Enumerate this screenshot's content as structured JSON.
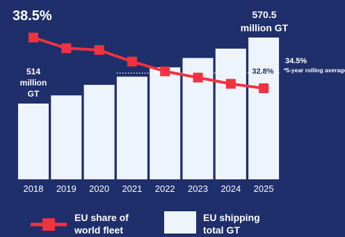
{
  "chart_data": {
    "type": "bar",
    "categories": [
      "2018",
      "2019",
      "2020",
      "2021",
      "2022",
      "2023",
      "2024",
      "2025"
    ],
    "series": [
      {
        "name": "EU shipping total GT",
        "type": "bar",
        "unit": "million GT",
        "values": [
          514,
          521,
          530,
          537,
          545,
          553,
          561,
          570.5
        ]
      },
      {
        "name": "EU share of world fleet",
        "type": "line",
        "unit": "%",
        "values": [
          38.5,
          37.3,
          37.1,
          35.8,
          34.7,
          34.0,
          33.3,
          32.8
        ]
      }
    ],
    "reference_line": {
      "value": 34.5,
      "label": "34.5%",
      "note": "*5-year rolling average"
    },
    "annotations": {
      "first_share": "38.5%",
      "first_gt_line1": "514",
      "first_gt_line2": "million",
      "first_gt_line3": "GT",
      "last_gt_line1": "570.5",
      "last_gt_line2": "million GT",
      "last_share": "32.8%"
    },
    "legend": {
      "line_label_1": "EU share of",
      "line_label_2": "world fleet",
      "bar_label_1": "EU shipping",
      "bar_label_2": "total GT"
    },
    "colors": {
      "background": "#1f2f6b",
      "bar": "#eef4fb",
      "line": "#ef3340",
      "text": "#ffffff",
      "value_text": "#1f2f6b"
    }
  }
}
